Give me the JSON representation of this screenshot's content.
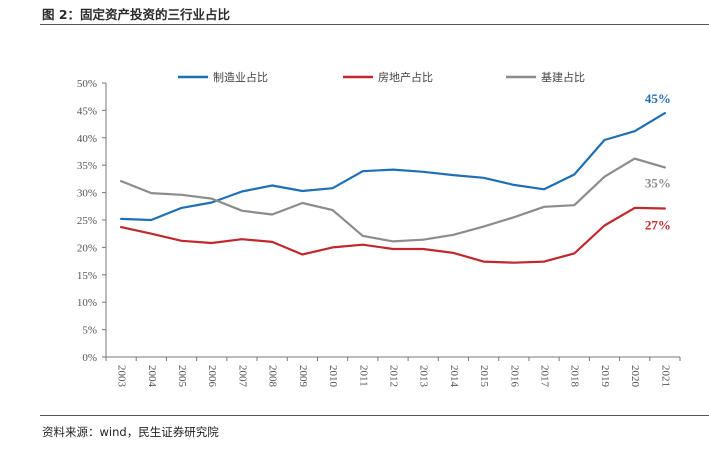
{
  "figure": {
    "title": "图 2：固定资产投资的三行业占比",
    "source": "资料来源：wind，民生证券研究院"
  },
  "chart_data": {
    "type": "line",
    "title": "",
    "xlabel": "",
    "ylabel": "",
    "ylim": [
      0,
      50
    ],
    "y_ticks": [
      "0%",
      "5%",
      "10%",
      "15%",
      "20%",
      "25%",
      "30%",
      "35%",
      "40%",
      "45%",
      "50%"
    ],
    "categories": [
      "2003",
      "2004",
      "2005",
      "2006",
      "2007",
      "2008",
      "2009",
      "2010",
      "2011",
      "2012",
      "2013",
      "2014",
      "2015",
      "2016",
      "2017",
      "2018",
      "2019",
      "2020",
      "2021"
    ],
    "legend_position": "top",
    "series": [
      {
        "name": "制造业占比",
        "color": "#1f6fb5",
        "values": [
          25.2,
          25.0,
          27.2,
          28.2,
          30.2,
          31.3,
          30.3,
          30.8,
          33.9,
          34.2,
          33.8,
          33.2,
          32.7,
          31.4,
          30.6,
          33.3,
          39.6,
          41.2,
          44.5
        ],
        "end_label": "45%"
      },
      {
        "name": "房地产占比",
        "color": "#c0282d",
        "values": [
          23.7,
          22.5,
          21.2,
          20.8,
          21.5,
          21.0,
          18.7,
          20.0,
          20.5,
          19.7,
          19.7,
          19.0,
          17.4,
          17.2,
          17.4,
          18.9,
          24.0,
          27.2,
          27.1
        ],
        "end_label": "27%"
      },
      {
        "name": "基建占比",
        "color": "#8c8c8c",
        "values": [
          32.1,
          29.9,
          29.6,
          28.9,
          26.7,
          26.0,
          28.1,
          26.8,
          22.1,
          21.1,
          21.4,
          22.3,
          23.8,
          25.5,
          27.4,
          27.7,
          32.9,
          36.2,
          34.6
        ],
        "end_label": "35%"
      }
    ]
  }
}
